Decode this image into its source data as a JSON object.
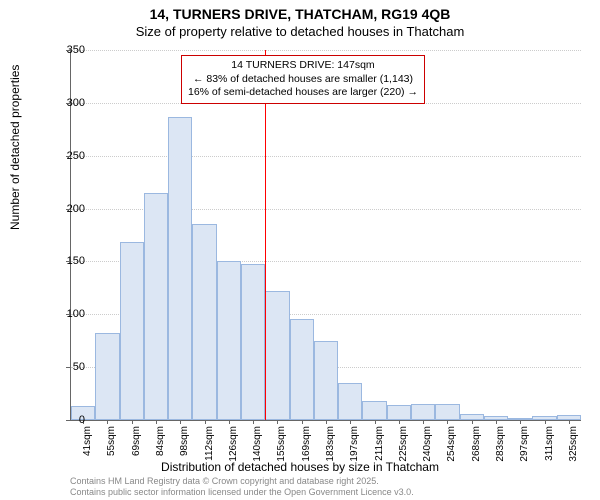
{
  "title_main": "14, TURNERS DRIVE, THATCHAM, RG19 4QB",
  "title_sub": "Size of property relative to detached houses in Thatcham",
  "ylabel": "Number of detached properties",
  "xlabel": "Distribution of detached houses by size in Thatcham",
  "chart": {
    "type": "histogram",
    "ylim": [
      0,
      350
    ],
    "ytick_step": 50,
    "bar_fill": "#dce6f4",
    "bar_border": "#9bb8e0",
    "grid_color": "#cccccc",
    "background_color": "#ffffff",
    "ref_line_color": "#ff0000",
    "annotation_border": "#cc0000",
    "x_categories": [
      "41sqm",
      "55sqm",
      "69sqm",
      "84sqm",
      "98sqm",
      "112sqm",
      "126sqm",
      "140sqm",
      "155sqm",
      "169sqm",
      "183sqm",
      "197sqm",
      "211sqm",
      "225sqm",
      "240sqm",
      "254sqm",
      "268sqm",
      "283sqm",
      "297sqm",
      "311sqm",
      "325sqm"
    ],
    "values": [
      13,
      82,
      168,
      215,
      287,
      185,
      150,
      148,
      122,
      96,
      75,
      35,
      18,
      14,
      15,
      15,
      6,
      4,
      2,
      4,
      5
    ],
    "ref_index": 8,
    "annotation": {
      "line1": "14 TURNERS DRIVE: 147sqm",
      "line2": "← 83% of detached houses are smaller (1,143)",
      "line3": "16% of semi-detached houses are larger (220) →"
    }
  },
  "footer": {
    "line1": "Contains HM Land Registry data © Crown copyright and database right 2025.",
    "line2": "Contains public sector information licensed under the Open Government Licence v3.0."
  }
}
